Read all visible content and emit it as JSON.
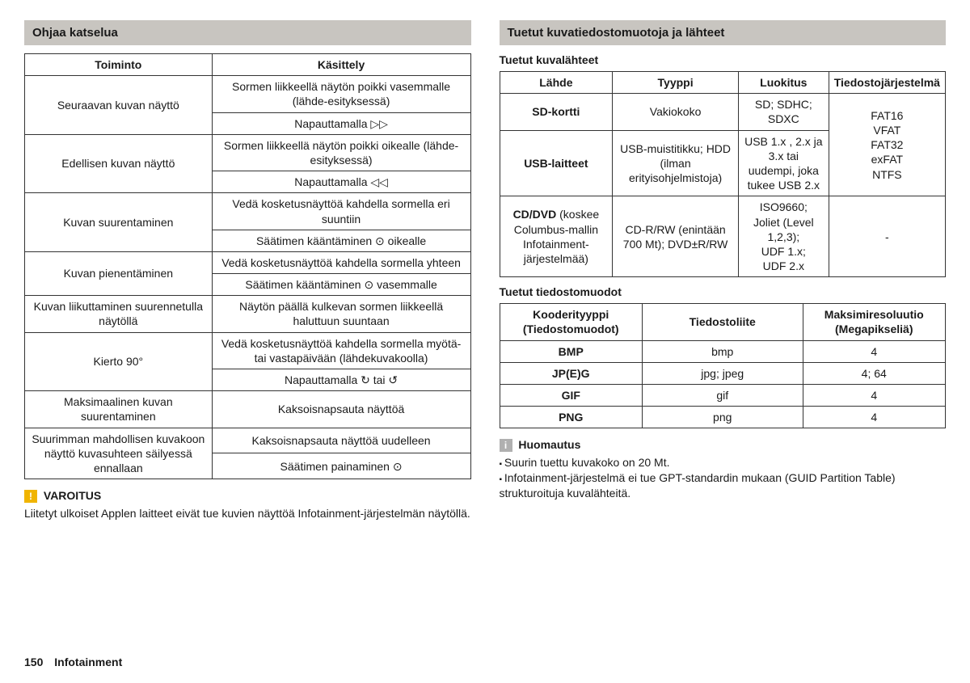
{
  "left": {
    "heading": "Ohjaa katselua",
    "tableHeaders": [
      "Toiminto",
      "Käsittely"
    ],
    "rows": [
      {
        "func": "Seuraavan kuvan näyttö",
        "ops": [
          "Sormen liikkeellä näytön poikki vasemmalle (lähde-esityksessä)",
          "Napauttamalla ▷▷"
        ]
      },
      {
        "func": "Edellisen kuvan näyttö",
        "ops": [
          "Sormen liikkeellä näytön poikki oikealle (lähde-esityksessä)",
          "Napauttamalla ◁◁"
        ]
      },
      {
        "func": "Kuvan suurentaminen",
        "ops": [
          "Vedä kosketusnäyttöä kahdella sormella eri suuntiin",
          "Säätimen kääntäminen ⊙ oikealle"
        ]
      },
      {
        "func": "Kuvan pienentäminen",
        "ops": [
          "Vedä kosketusnäyttöä kahdella sormella yhteen",
          "Säätimen kääntäminen ⊙ vasemmalle"
        ]
      },
      {
        "func": "Kuvan liikuttaminen suurennetulla näytöllä",
        "ops": [
          "Näytön päällä kulkevan sormen liikkeellä haluttuun suuntaan"
        ]
      },
      {
        "func": "Kierto 90°",
        "ops": [
          "Vedä kosketusnäyttöä kahdella sormella myötä- tai vastapäivään (lähdekuvakoolla)",
          "Napauttamalla ↻ tai ↺"
        ]
      },
      {
        "func": "Maksimaalinen kuvan suurentaminen",
        "ops": [
          "Kaksoisnapsauta näyttöä"
        ]
      },
      {
        "func": "Suurimman mahdollisen kuvakoon näyttö kuvasuhteen säilyessä ennallaan",
        "ops": [
          "Kaksoisnapsauta näyttöä uudelleen",
          "Säätimen painaminen ⊙"
        ]
      }
    ],
    "warnTitle": "VAROITUS",
    "warnBody": "Liitetyt ulkoiset Applen laitteet eivät tue kuvien näyttöä Infotainment-järjestelmän näytöllä."
  },
  "right": {
    "heading": "Tuetut kuvatiedostomuotoja ja lähteet",
    "sourcesTitle": "Tuetut kuvalähteet",
    "sourcesHeaders": [
      "Lähde",
      "Tyyppi",
      "Luokitus",
      "Tiedostojärjestelmä"
    ],
    "sourcesRows": [
      {
        "src": "SD-kortti",
        "type": "Vakiokoko",
        "class": "SD; SDHC; SDXC",
        "fsSpan": true
      },
      {
        "src": "USB-laitteet",
        "type": "USB-muistitikku; HDD (ilman erityisohjelmistoja)",
        "class": "USB 1.x , 2.x ja 3.x tai uudempi, joka tukee USB 2.x"
      },
      {
        "src": "CD/DVD (koskee Columbus-mallin Infotainment-järjestelmää)",
        "srcBold": "CD/DVD",
        "type": "CD-R/RW (enintään 700 Mt); DVD±R/RW",
        "class": "ISO9660;\nJoliet (Level 1,2,3);\nUDF 1.x;\nUDF 2.x",
        "fs": "-"
      }
    ],
    "fsCombined": "FAT16\nVFAT\nFAT32\nexFAT\nNTFS",
    "formatsTitle": "Tuetut tiedostomuodot",
    "formatsHeaders": [
      "Kooderityyppi (Tiedostomuodot)",
      "Tiedostoliite",
      "Maksimiresoluutio (Megapikseliä)"
    ],
    "formatsRows": [
      [
        "BMP",
        "bmp",
        "4"
      ],
      [
        "JP(E)G",
        "jpg; jpeg",
        "4; 64"
      ],
      [
        "GIF",
        "gif",
        "4"
      ],
      [
        "PNG",
        "png",
        "4"
      ]
    ],
    "noteTitle": "Huomautus",
    "noteBullets": [
      "Suurin tuettu kuvakoko on 20 Mt.",
      "Infotainment-järjestelmä ei tue GPT-standardin mukaan (GUID Partition Table) strukturoituja kuvalähteitä."
    ]
  },
  "footer": {
    "page": "150",
    "section": "Infotainment"
  }
}
